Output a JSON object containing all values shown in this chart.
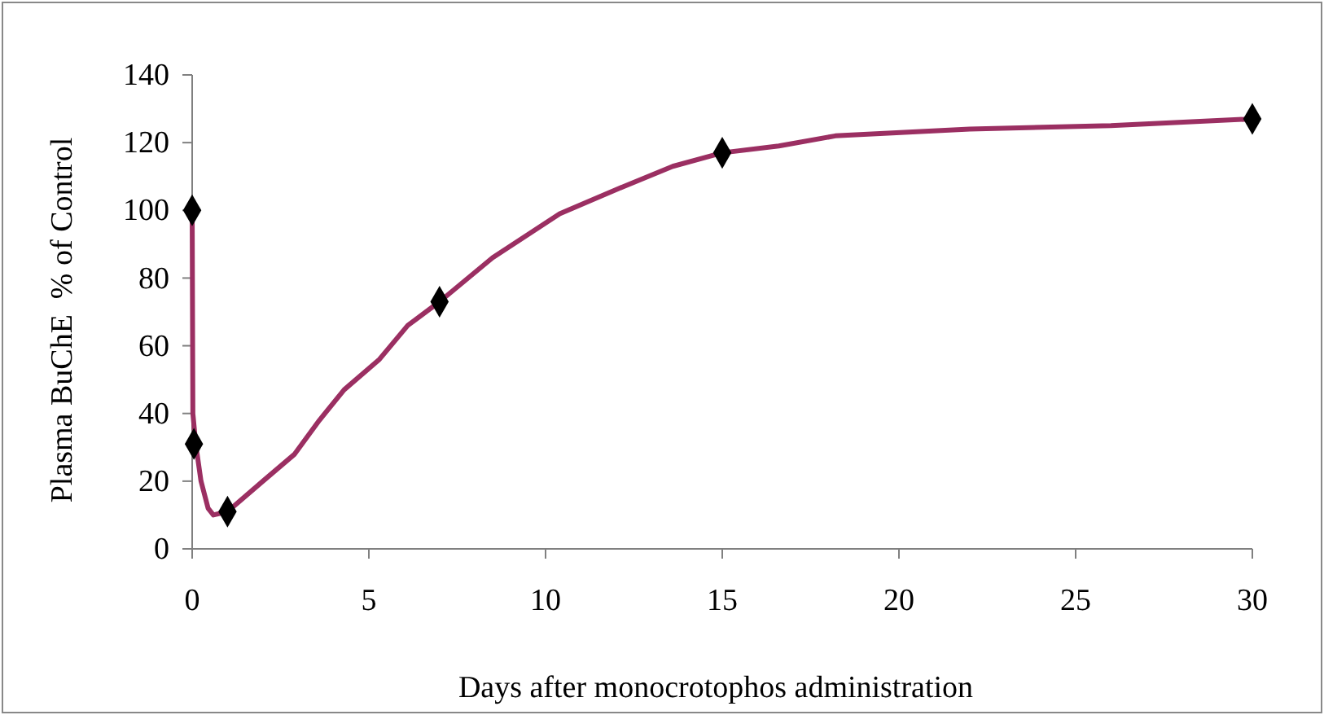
{
  "chart_data": {
    "type": "line",
    "xlabel": "Days after monocrotophos administration",
    "ylabel": "Plasma BuChE  % of Control",
    "xlim": [
      0,
      30
    ],
    "xticks": [
      0,
      5,
      10,
      15,
      20,
      25,
      30
    ],
    "ylim": [
      0,
      140
    ],
    "yticks": [
      0,
      20,
      40,
      60,
      80,
      100,
      120,
      140
    ],
    "grid": false,
    "series": [
      {
        "color": "#9b2f62",
        "marker": "none",
        "x": [
          0,
          0.02,
          0.1,
          0.25,
          0.45,
          0.6,
          1,
          2,
          2.9,
          3.6,
          4.3,
          5.3,
          6.1,
          7,
          8.5,
          10.4,
          12.2,
          13.6,
          15,
          16.6,
          18.2,
          22,
          26,
          30
        ],
        "values": [
          100,
          40,
          31,
          20,
          12,
          10,
          11,
          20,
          28,
          38,
          47,
          56,
          66,
          73,
          86,
          99,
          107,
          113,
          117,
          119,
          122,
          124,
          125,
          127
        ]
      },
      {
        "type": "scatter",
        "color": "#000000",
        "marker": "diamond",
        "x": [
          0,
          0.05,
          1,
          7,
          15,
          30
        ],
        "values": [
          100,
          31,
          11,
          73,
          117,
          127
        ]
      }
    ]
  }
}
